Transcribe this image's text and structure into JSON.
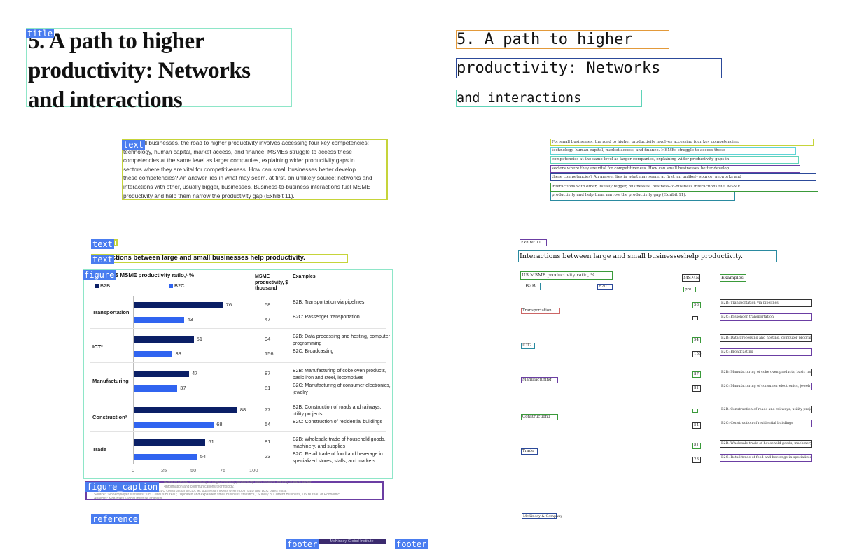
{
  "labels": {
    "title": "title",
    "text": "text",
    "figure": "figure",
    "figure_caption": "figure_caption",
    "reference": "reference",
    "footer": "footer"
  },
  "title": {
    "left_lines": [
      "5. A path to higher",
      "productivity: Networks",
      "and interactions"
    ],
    "right_lines": [
      "5. A path to higher",
      "productivity: Networks",
      "and interactions"
    ]
  },
  "body": {
    "left_lines": [
      "For small businesses, the road to higher productivity involves accessing four key competencies:",
      "technology, human capital, market access, and finance. MSMEs struggle to access these",
      "competencies at the same level as larger companies, explaining wider productivity gaps in",
      "sectors where they are vital for competitiveness. How can small businesses better develop",
      "these competencies? An answer lies in what may seem, at first, an unlikely source: networks and",
      "interactions with other, usually bigger, businesses. Business-to-business interactions fuel MSME",
      "productivity and help them narrow the productivity gap (Exhibit 11)."
    ],
    "right_lines": [
      "For small businesses, the road to higher productivity involves accessing four key competencies:",
      "technology, human capital, market access, and finance. MSMEs struggle to access these",
      "competencies at the same level as larger companies, explaining wider productivity gaps in",
      "sectors where they are vital for competitiveness. How can small businesses better develop",
      "these competencies? An answer lies in what may seem, at first, an unlikely source: networks and",
      "interactions with other, usually bigger, businesses. Business-to-business interactions fuel MSME",
      "productivity and help them narrow the productivity gap (Exhibit 11)."
    ]
  },
  "exhibit": {
    "label": "Exhibit 11",
    "heading": "Interactions between large and small businesses help productivity.",
    "heading_right": "Interactions between large and small businesseshelp productivity."
  },
  "figure": {
    "chart_title": "US MSME productivity ratio,¹ %",
    "chart_title_right": "US MSME productivity ratio, %",
    "legend_b2b": "B2B",
    "legend_b2c": "B2C",
    "col_productivity": "MSME productivity, $ thousand",
    "col_examples": "Examples",
    "right_col_msme": "MSME",
    "right_col_productivity": "pro",
    "right_col_examples": "Examples",
    "colors": {
      "b2b": "#0b1f66",
      "b2c": "#3064f0"
    }
  },
  "chart_data": {
    "type": "bar",
    "title": "US MSME productivity ratio,¹ %",
    "categories": [
      "Transportation",
      "ICT²",
      "Manufacturing",
      "Construction³",
      "Trade"
    ],
    "categories_right": [
      "Transportation",
      "ICT2",
      "Manufacturing",
      "Construction3",
      "Trade"
    ],
    "series": [
      {
        "name": "B2B",
        "values": [
          76,
          51,
          47,
          88,
          61
        ]
      },
      {
        "name": "B2C",
        "values": [
          43,
          33,
          37,
          68,
          54
        ]
      }
    ],
    "productivity": {
      "b2b": [
        "58",
        "94",
        "87",
        "77",
        "81"
      ],
      "b2c": [
        "47",
        "156",
        "81",
        "54",
        "23"
      ]
    },
    "productivity_right": {
      "b2b": [
        "58",
        "94",
        "87",
        "",
        "81"
      ],
      "b2c": [
        "",
        "156",
        "81",
        "54",
        "23"
      ]
    },
    "examples": {
      "b2b": [
        "B2B: Transportation via pipelines",
        "B2B: Data processing and hosting, computer programming",
        "B2B: Manufacturing of coke oven products, basic iron and steel, locomotives",
        "B2B: Construction of roads and railways, utility projects",
        "B2B: Wholesale trade of household goods, machinery, and supplies"
      ],
      "b2c": [
        "B2C: Passenger transportation",
        "B2C: Broadcasting",
        "B2C: Manufacturing of consumer electronics, jewelry",
        "B2C: Construction of residential buildings",
        "B2C: Retail trade of food and beverage in specialized stores, stalls, and markets"
      ]
    },
    "ticks": [
      "0",
      "25",
      "50",
      "75",
      "100"
    ],
    "xlim": [
      0,
      100
    ]
  },
  "caption": {
    "lines": [
      "¹Ratio of MSME productivity to large-company productivity ratio for each industry in each sector.",
      "²Information and communications technology.",
      "³Includes \"mixed\" business models in the B2C construction sector, ie, business models where both B2B and B2C plays exist.",
      "Source: \"Nonemployer statistics,\" US Census Bureau; \"Updated and expanded small business statistics,\" Survey of Current Business, US Bureau of Economic",
      "Analysis; McKinsey Global Institute analysis"
    ]
  },
  "reference": {
    "right": "McKinsey & Company"
  },
  "footer": {
    "center": "McKinsey Global Institute"
  }
}
